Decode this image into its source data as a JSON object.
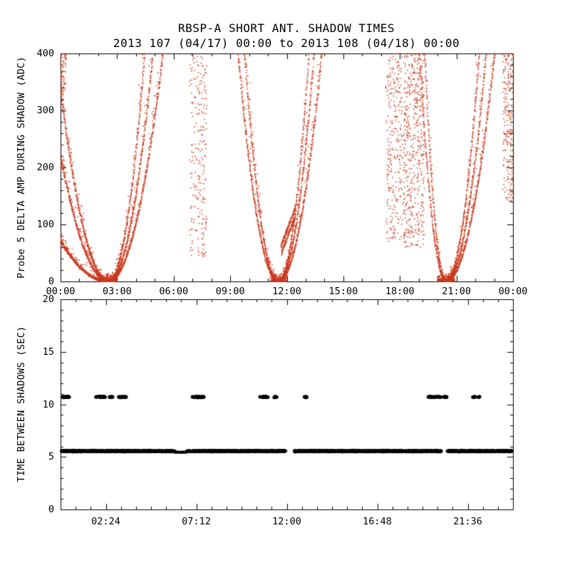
{
  "page": {
    "background": "#ffffff"
  },
  "colors": {
    "axis": "#000000",
    "top_points": "#cb3a1e",
    "bottom_points": "#000000"
  },
  "chart_data": [
    {
      "type": "scatter",
      "panel": "top",
      "title": "RBSP-A SHORT ANT. SHADOW TIMES",
      "subtitle": "2013 107 (04/17) 00:00 to 2013 108 (04/18) 00:00",
      "xlabel": "",
      "ylabel": "Probe 5 DELTA AMP DURING SHADOW (ADC)",
      "xlim_hours": [
        0,
        24
      ],
      "ylim": [
        0,
        400
      ],
      "grid": false,
      "legend": false,
      "x_ticks": [
        {
          "hour": 0,
          "label": "00:00"
        },
        {
          "hour": 3,
          "label": "03:00"
        },
        {
          "hour": 6,
          "label": "06:00"
        },
        {
          "hour": 9,
          "label": "09:00"
        },
        {
          "hour": 12,
          "label": "12:00"
        },
        {
          "hour": 15,
          "label": "15:00"
        },
        {
          "hour": 18,
          "label": "18:00"
        },
        {
          "hour": 21,
          "label": "21:00"
        },
        {
          "hour": 24,
          "label": "00:00"
        }
      ],
      "x_minor_step_hours": 1,
      "y_ticks": [
        {
          "value": 0,
          "label": "0"
        },
        {
          "value": 100,
          "label": "100"
        },
        {
          "value": 200,
          "label": "200"
        },
        {
          "value": 300,
          "label": "300"
        },
        {
          "value": 400,
          "label": "400"
        }
      ],
      "y_minor_step": 20,
      "marker": {
        "shape": "dot",
        "size": 1.6,
        "color": "#cb3a1e"
      },
      "series_description": "Red dot scatter of probe 5 delta amplitude during spin shadows: parabolic valleys reaching 0 ADC near 02:30, 11:35 and 20:30, rising to the 400 ADC clip between valleys, with sparse vertical scatter columns near 07:15, 17:15-19:20 and at both plot edges.",
      "points_model": {
        "seed": 1337,
        "step_hours": 0.0065,
        "valleys": [
          {
            "center": 2.55,
            "left_a": [
              11,
              34,
              52
            ],
            "right_a": [
              48,
              72,
              108
            ],
            "spray": 55
          },
          {
            "center": 11.55,
            "left_a": [
              88,
              125
            ],
            "right_a": [
              75,
              110,
              150
            ],
            "spray": 55
          },
          {
            "center": 20.45,
            "left_a": [
              200,
              310
            ],
            "right_a": [
              60,
              88,
              128
            ],
            "spray": 55
          }
        ],
        "minima_blobs": {
          "halfwidth": 0.45,
          "ymax": 14,
          "n": 230
        },
        "columns": [
          {
            "t": [
              0.0,
              0.3
            ],
            "y": [
              330,
              400
            ],
            "n": 70
          },
          {
            "t": [
              6.85,
              7.75
            ],
            "y": [
              40,
              400
            ],
            "n": 240
          },
          {
            "t": [
              17.25,
              18.15
            ],
            "y": [
              70,
              400
            ],
            "n": 280
          },
          {
            "t": [
              18.2,
              19.3
            ],
            "y": [
              60,
              400
            ],
            "n": 500
          },
          {
            "t": [
              23.45,
              24.0
            ],
            "y": [
              140,
              400
            ],
            "n": 230
          }
        ],
        "ramp": {
          "t": [
            11.7,
            12.45
          ],
          "y": [
            48,
            115
          ],
          "n": 260
        }
      }
    },
    {
      "type": "scatter",
      "panel": "bottom",
      "title": "",
      "xlabel": "",
      "ylabel": "TIME BETWEEN SHADOWS (SEC)",
      "xlim_hours": [
        0,
        24
      ],
      "ylim": [
        0,
        20
      ],
      "grid": false,
      "legend": false,
      "x_ticks": [
        {
          "hour": 2.4,
          "label": "02:24"
        },
        {
          "hour": 7.2,
          "label": "07:12"
        },
        {
          "hour": 12,
          "label": "12:00"
        },
        {
          "hour": 16.8,
          "label": "16:48"
        },
        {
          "hour": 21.6,
          "label": "21:36"
        }
      ],
      "x_minor_step_hours": 0.8,
      "y_ticks": [
        {
          "value": 0,
          "label": "0"
        },
        {
          "value": 5,
          "label": "5"
        },
        {
          "value": 10,
          "label": "10"
        },
        {
          "value": 15,
          "label": "15"
        },
        {
          "value": 20,
          "label": "20"
        }
      ],
      "y_minor_step": 1,
      "marker": {
        "shape": "asterisk",
        "size": 5,
        "color": "#000000"
      },
      "series_description": "Black asterisks: a dense horizontal band at about 5.5 s spanning almost the whole day (thin/sparse near 06:00-06:40, gaps near 12:00 and 20:20), plus small clusters at about 10.7 s near 00:15, 02:00, 03:15, 07:15, 10:45, 13:00, 19:50 and 22:00.",
      "points_model": {
        "seed": 7,
        "band_y": 5.55,
        "band_jitter": 0.1,
        "band_density_per_hour": 240,
        "band_segments": [
          [
            0.05,
            6.05
          ],
          [
            6.7,
            11.95
          ],
          [
            12.4,
            20.2
          ],
          [
            20.5,
            23.95
          ]
        ],
        "thin_y": 5.45,
        "thin_density_per_hour": 90,
        "thin_segments": [
          [
            6.05,
            6.7
          ]
        ],
        "cluster_y": 10.7,
        "clusters": [
          [
            0.1,
            0.45,
            14
          ],
          [
            1.85,
            2.35,
            22
          ],
          [
            2.55,
            2.75,
            8
          ],
          [
            3.05,
            3.45,
            12
          ],
          [
            6.95,
            7.6,
            22
          ],
          [
            10.55,
            11.05,
            18
          ],
          [
            11.3,
            11.45,
            5
          ],
          [
            12.9,
            13.05,
            6
          ],
          [
            19.5,
            20.15,
            16
          ],
          [
            20.3,
            20.5,
            6
          ],
          [
            21.85,
            22.2,
            8
          ]
        ]
      }
    }
  ]
}
